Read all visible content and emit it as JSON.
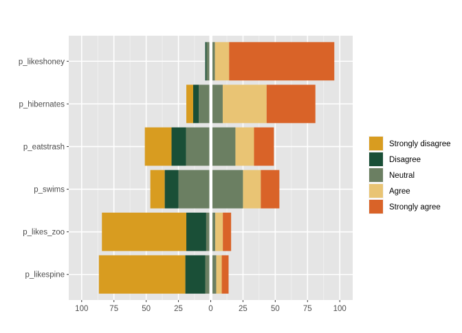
{
  "chart_data": {
    "type": "bar",
    "orientation": "horizontal",
    "stacking": "diverging",
    "title": "",
    "xlabel": "",
    "ylabel": "",
    "xlim": [
      -110,
      110
    ],
    "x_ticks": [
      -100,
      -75,
      -50,
      -25,
      0,
      25,
      50,
      75,
      100
    ],
    "x_tick_labels": [
      "100",
      "75",
      "50",
      "25",
      "0",
      "25",
      "50",
      "75",
      "100"
    ],
    "grid": true,
    "legend_position": "right",
    "categories": [
      "p_likespine",
      "p_likes_zoo",
      "p_swims",
      "p_eatstrash",
      "p_hibernates",
      "p_likeshoney"
    ],
    "series": [
      {
        "name": "Strongly disagree",
        "color": "#D89C20",
        "values": [
          67,
          65.4,
          11.2,
          20.7,
          5.3,
          0
        ]
      },
      {
        "name": "Disagree",
        "color": "#1A4F37",
        "values": [
          15.4,
          15.4,
          10.6,
          11.2,
          4.3,
          1
        ]
      },
      {
        "name": "Neutral",
        "color": "#6B7F62",
        "values": [
          8.5,
          7,
          50,
          38.3,
          18.6,
          6.5
        ]
      },
      {
        "name": "Agree",
        "color": "#E9C474",
        "values": [
          4.3,
          5.9,
          13.8,
          14.4,
          34,
          11
        ]
      },
      {
        "name": "Strongly agree",
        "color": "#D96328",
        "values": [
          5.3,
          6.4,
          14.4,
          15.4,
          37.8,
          81.5
        ]
      }
    ]
  }
}
